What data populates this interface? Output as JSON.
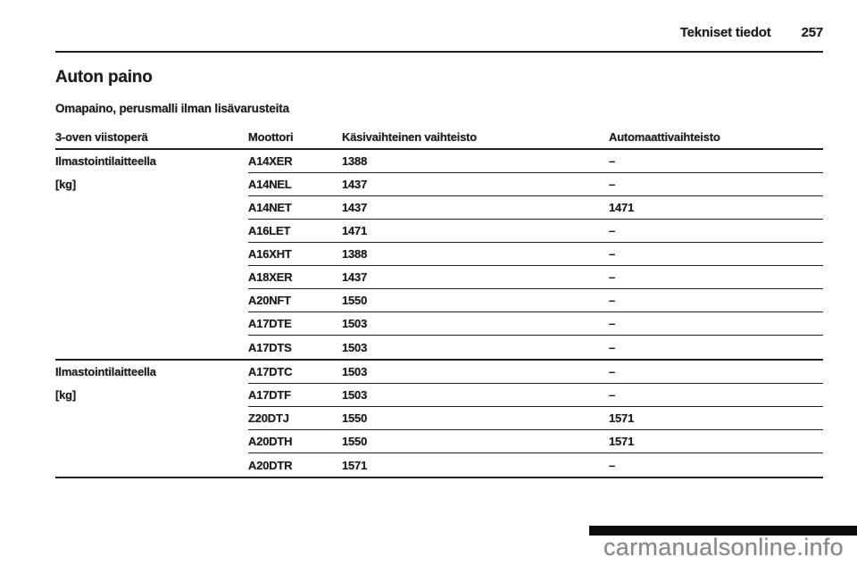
{
  "header": {
    "section_title": "Tekniset tiedot",
    "page_number": "257"
  },
  "title": "Auton paino",
  "subtitle": "Omapaino, perusmalli ilman lisävarusteita",
  "watermark": "carmanualsonline.info",
  "colors": {
    "text": "#221e1f",
    "watermark_gray": "#8a8a8a",
    "bar_black": "#0c0c0c",
    "background": "#ffffff"
  },
  "table": {
    "columns": [
      "3-oven viistoperä",
      "Moottori",
      "Käsivaihteinen vaihteisto",
      "Automaattivaihteisto"
    ],
    "groups": [
      {
        "label_line1": "Ilmastointilaitteella",
        "label_line2": "[kg]",
        "rows": [
          {
            "engine": "A14XER",
            "manual": "1388",
            "automatic": "–"
          },
          {
            "engine": "A14NEL",
            "manual": "1437",
            "automatic": "–"
          },
          {
            "engine": "A14NET",
            "manual": "1437",
            "automatic": "1471"
          },
          {
            "engine": "A16LET",
            "manual": "1471",
            "automatic": "–"
          },
          {
            "engine": "A16XHT",
            "manual": "1388",
            "automatic": "–"
          },
          {
            "engine": "A18XER",
            "manual": "1437",
            "automatic": "–"
          },
          {
            "engine": "A20NFT",
            "manual": "1550",
            "automatic": "–"
          },
          {
            "engine": "A17DTE",
            "manual": "1503",
            "automatic": "–"
          },
          {
            "engine": "A17DTS",
            "manual": "1503",
            "automatic": "–"
          }
        ]
      },
      {
        "label_line1": "Ilmastointilaitteella",
        "label_line2": "[kg]",
        "rows": [
          {
            "engine": "A17DTC",
            "manual": "1503",
            "automatic": "–"
          },
          {
            "engine": "A17DTF",
            "manual": "1503",
            "automatic": "–"
          },
          {
            "engine": "Z20DTJ",
            "manual": "1550",
            "automatic": "1571"
          },
          {
            "engine": "A20DTH",
            "manual": "1550",
            "automatic": "1571"
          },
          {
            "engine": "A20DTR",
            "manual": "1571",
            "automatic": "–"
          }
        ]
      }
    ]
  }
}
